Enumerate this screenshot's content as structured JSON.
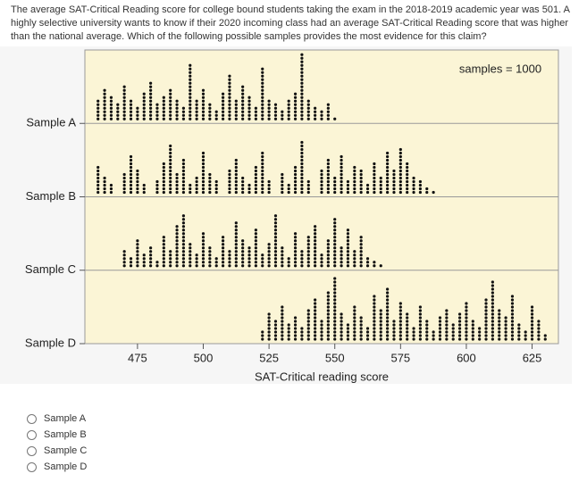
{
  "question": "The average SAT-Critical Reading score for college bound students taking the exam in the 2018-2019 academic year was 501. A highly selective university wants to know if their 2020 incoming class had an average SAT-Critical Reading score that was higher than the national average. Which of the following possible samples provides the most evidence for this claim?",
  "chart_data": {
    "type": "dotplot",
    "annotation": "samples = 1000",
    "x_label": "SAT-Critical reading score",
    "xlim": [
      455,
      635
    ],
    "xticks": [
      475,
      500,
      525,
      550,
      575,
      600,
      625
    ],
    "color": "#111111",
    "samples": [
      {
        "name": "Sample A",
        "x": [
          460,
          462.5,
          465,
          467.5,
          470,
          472.5,
          475,
          477.5,
          480,
          482.5,
          485,
          487.5,
          490,
          492.5,
          495,
          497.5,
          500,
          502.5,
          505,
          507.5,
          510,
          512.5,
          515,
          517.5,
          520,
          522.5,
          525,
          527.5,
          530,
          532.5,
          535,
          537.5,
          540,
          542.5,
          545,
          547.5,
          550
        ],
        "counts": [
          6,
          9,
          7,
          5,
          10,
          6,
          4,
          8,
          11,
          5,
          7,
          9,
          6,
          4,
          16,
          6,
          9,
          5,
          3,
          8,
          13,
          6,
          10,
          7,
          4,
          15,
          6,
          5,
          3,
          6,
          8,
          19,
          6,
          4,
          3,
          5,
          1
        ]
      },
      {
        "name": "Sample B",
        "x": [
          460,
          462.5,
          465,
          470,
          472.5,
          475,
          477.5,
          482.5,
          485,
          487.5,
          490,
          492.5,
          495,
          497.5,
          500,
          502.5,
          505,
          510,
          512.5,
          515,
          517.5,
          520,
          522.5,
          525,
          530,
          532.5,
          535,
          537.5,
          540,
          545,
          547.5,
          550,
          552.5,
          555,
          557.5,
          560,
          562.5,
          565,
          567.5,
          570,
          572.5,
          575,
          577.5,
          580,
          582.5,
          585,
          587.5
        ],
        "counts": [
          8,
          5,
          3,
          6,
          11,
          7,
          3,
          4,
          9,
          14,
          6,
          10,
          3,
          5,
          12,
          6,
          4,
          7,
          10,
          5,
          3,
          8,
          12,
          4,
          6,
          3,
          8,
          15,
          4,
          7,
          10,
          5,
          11,
          4,
          8,
          7,
          3,
          9,
          5,
          12,
          7,
          13,
          9,
          5,
          4,
          2,
          1
        ]
      },
      {
        "name": "Sample C",
        "x": [
          470,
          472.5,
          475,
          477.5,
          480,
          482.5,
          485,
          487.5,
          490,
          492.5,
          495,
          497.5,
          500,
          502.5,
          505,
          507.5,
          510,
          512.5,
          515,
          517.5,
          520,
          522.5,
          525,
          527.5,
          530,
          532.5,
          535,
          537.5,
          540,
          542.5,
          545,
          547.5,
          550,
          552.5,
          555,
          557.5,
          560,
          562.5,
          565,
          567.5
        ],
        "counts": [
          5,
          3,
          8,
          4,
          6,
          2,
          9,
          5,
          12,
          15,
          7,
          4,
          10,
          6,
          3,
          9,
          5,
          13,
          8,
          6,
          11,
          4,
          7,
          15,
          6,
          3,
          10,
          5,
          9,
          12,
          4,
          8,
          14,
          6,
          11,
          5,
          9,
          3,
          2,
          1
        ]
      },
      {
        "name": "Sample D",
        "x": [
          522.5,
          525,
          527.5,
          530,
          532.5,
          535,
          537.5,
          540,
          542.5,
          545,
          547.5,
          550,
          552.5,
          555,
          557.5,
          560,
          562.5,
          565,
          567.5,
          570,
          572.5,
          575,
          577.5,
          580,
          582.5,
          585,
          587.5,
          590,
          592.5,
          595,
          597.5,
          600,
          602.5,
          605,
          607.5,
          610,
          612.5,
          615,
          617.5,
          620,
          622.5,
          625,
          627.5,
          630
        ],
        "counts": [
          3,
          8,
          6,
          10,
          5,
          7,
          4,
          9,
          12,
          6,
          14,
          18,
          8,
          5,
          10,
          7,
          4,
          13,
          9,
          15,
          6,
          11,
          8,
          4,
          10,
          6,
          3,
          7,
          9,
          5,
          8,
          11,
          6,
          4,
          12,
          17,
          9,
          7,
          13,
          5,
          3,
          10,
          6,
          2
        ]
      }
    ]
  },
  "options": [
    "Sample A",
    "Sample B",
    "Sample C",
    "Sample D"
  ]
}
